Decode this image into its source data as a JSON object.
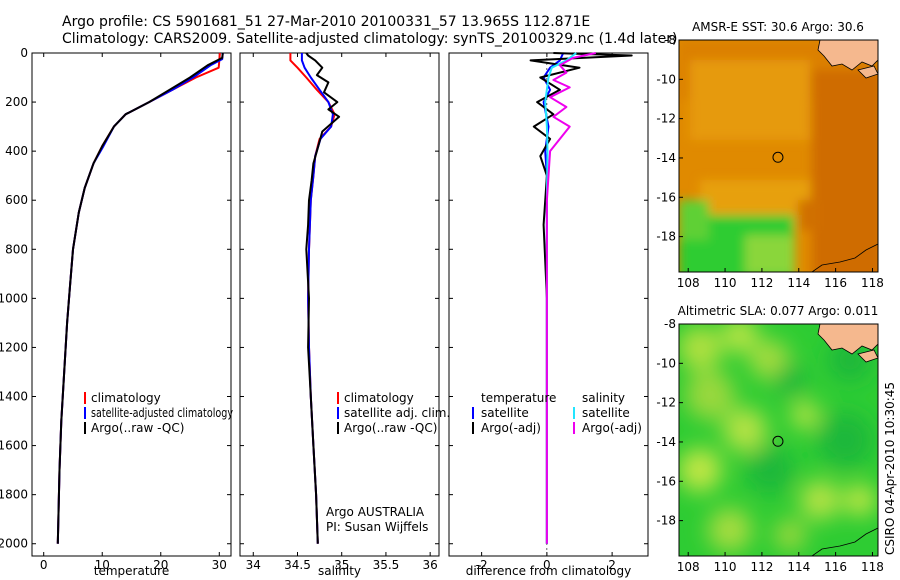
{
  "header": {
    "line1": "Argo profile: CS 5901681_51 27-Mar-2010 20100331_57 13.965S 112.871E",
    "line2": "Climatology: CARS2009. Satellite-adjusted climatology: synTS_20100329.nc (1.4d later)"
  },
  "side_label": "CSIRO 04-Apr-2010 10:30:45",
  "colors": {
    "climatology": "#ff0000",
    "satellite": "#0000ff",
    "argo": "#000000",
    "sal_satellite": "#22e5ff",
    "sal_argo": "#ee00ee",
    "land": "#f5b88e",
    "sst_warm": "#e08a00",
    "sst_hot": "#d06800",
    "sla_green": "#2ecc33"
  },
  "legends": {
    "temperature_panel": [
      "climatology",
      "satellite-adjusted climatology",
      "Argo(..raw -QC)"
    ],
    "salinity_panel": [
      "climatology",
      "satellite adj. clim.",
      "Argo(..raw -QC)"
    ],
    "salinity_note": [
      "Argo AUSTRALIA",
      "PI: Susan Wijffels"
    ],
    "difference_headers": [
      "temperature",
      "salinity"
    ],
    "difference_temperature": [
      "satellite",
      "Argo(-adj)"
    ],
    "difference_salinity": [
      "satellite",
      "Argo(-adj)"
    ]
  },
  "maps": {
    "sst_title": "AMSR-E SST: 30.6 Argo: 30.6",
    "sla_title": "Altimetric SLA: 0.077 Argo: 0.011",
    "xticks": [
      "108",
      "110",
      "112",
      "114",
      "116",
      "118"
    ],
    "yticks": [
      "-8",
      "-10",
      "-12",
      "-14",
      "-16",
      "-18"
    ],
    "argo_lon": 112.871,
    "argo_lat": -13.965,
    "lon_range": [
      107.5,
      118.3
    ],
    "lat_range": [
      -8,
      -19.8
    ]
  },
  "chart_data": [
    {
      "type": "line",
      "name": "temperature",
      "xlabel": "temperature",
      "ylabel": "",
      "xlim": [
        -2,
        32
      ],
      "ylim": [
        2050,
        0
      ],
      "xticks": [
        "0",
        "10",
        "20",
        "30"
      ],
      "xtick_values": [
        0,
        10,
        20,
        30
      ],
      "yticks": [
        "0",
        "200",
        "400",
        "600",
        "800",
        "1000",
        "1200",
        "1400",
        "1600",
        "1800",
        "2000"
      ],
      "ytick_values": [
        0,
        200,
        400,
        600,
        800,
        1000,
        1200,
        1400,
        1600,
        1800,
        2000
      ],
      "series": [
        {
          "name": "climatology",
          "color": "#ff0000",
          "x": [
            30.1,
            30.0,
            29.9,
            26.0,
            22.0,
            18.0,
            14.0,
            12.0,
            10.0,
            8.5,
            7.0,
            6.0,
            5.0,
            4.5,
            4.0,
            3.5,
            3.0,
            2.7,
            2.4
          ],
          "y": [
            0,
            30,
            60,
            100,
            150,
            200,
            250,
            300,
            380,
            450,
            550,
            650,
            800,
            950,
            1100,
            1300,
            1500,
            1700,
            2000
          ]
        },
        {
          "name": "satellite-adjusted climatology",
          "color": "#0000ff",
          "x": [
            30.6,
            30.5,
            28.5,
            25.5,
            22.0,
            18.0,
            14.0,
            12.0,
            10.2,
            8.5,
            7.0,
            6.0,
            5.0,
            4.5,
            4.0,
            3.5,
            3.0,
            2.7,
            2.4
          ],
          "y": [
            0,
            25,
            50,
            100,
            150,
            200,
            250,
            300,
            380,
            450,
            550,
            650,
            800,
            950,
            1100,
            1300,
            1500,
            1700,
            2000
          ]
        },
        {
          "name": "Argo(..raw -QC)",
          "color": "#000000",
          "x": [
            30.6,
            30.5,
            28.0,
            25.0,
            21.5,
            18.0,
            14.0,
            12.0,
            10.0,
            8.5,
            7.0,
            6.0,
            5.0,
            4.5,
            4.0,
            3.5,
            3.0,
            2.7,
            2.4
          ],
          "y": [
            0,
            20,
            50,
            100,
            150,
            200,
            250,
            300,
            380,
            450,
            550,
            650,
            800,
            950,
            1100,
            1300,
            1500,
            1700,
            2000
          ]
        }
      ]
    },
    {
      "type": "line",
      "name": "salinity",
      "xlabel": "salinity",
      "ylabel": "",
      "xlim": [
        33.85,
        36.1
      ],
      "ylim": [
        2050,
        0
      ],
      "xticks": [
        "34",
        "34.5",
        "35",
        "35.5",
        "36"
      ],
      "xtick_values": [
        34,
        34.5,
        35,
        35.5,
        36
      ],
      "series": [
        {
          "name": "climatology",
          "color": "#ff0000",
          "x": [
            34.42,
            34.42,
            34.5,
            34.6,
            34.72,
            34.85,
            34.92,
            34.88,
            34.75,
            34.7,
            34.68,
            34.65,
            34.63,
            34.62,
            34.63,
            34.65,
            34.68,
            34.71,
            34.73
          ],
          "y": [
            0,
            30,
            60,
            100,
            150,
            200,
            250,
            300,
            350,
            420,
            500,
            600,
            800,
            1000,
            1200,
            1400,
            1600,
            1800,
            2000
          ]
        },
        {
          "name": "satellite adj. clim.",
          "color": "#0000ff",
          "x": [
            34.55,
            34.55,
            34.58,
            34.65,
            34.75,
            34.85,
            34.9,
            34.88,
            34.76,
            34.7,
            34.68,
            34.65,
            34.63,
            34.62,
            34.63,
            34.65,
            34.68,
            34.71,
            34.73
          ],
          "y": [
            0,
            30,
            60,
            100,
            150,
            200,
            250,
            300,
            350,
            420,
            500,
            600,
            800,
            1000,
            1200,
            1400,
            1600,
            1800,
            2000
          ]
        },
        {
          "name": "Argo(..raw -QC)",
          "color": "#000000",
          "x": [
            34.6,
            34.62,
            34.7,
            34.78,
            34.72,
            34.85,
            34.8,
            34.95,
            34.85,
            34.97,
            34.78,
            34.72,
            34.68,
            34.66,
            34.63,
            34.62,
            34.6,
            34.63,
            34.62,
            34.65,
            34.68,
            34.71,
            34.73
          ],
          "y": [
            0,
            10,
            30,
            60,
            90,
            120,
            160,
            200,
            230,
            260,
            320,
            400,
            450,
            520,
            600,
            700,
            800,
            1000,
            1200,
            1400,
            1600,
            1800,
            2000
          ]
        }
      ]
    },
    {
      "type": "line",
      "name": "difference from climatology",
      "xlabel": "difference from climatology",
      "ylabel": "",
      "xlim": [
        -3,
        3.1
      ],
      "ylim": [
        2050,
        0
      ],
      "xticks": [
        "-2",
        "0",
        "2"
      ],
      "xtick_values": [
        -2,
        0,
        2
      ],
      "series": [
        {
          "name": "temperature satellite",
          "color": "#0000ff",
          "x": [
            0.5,
            0.4,
            0.1,
            -0.1,
            0.1,
            -0.1,
            0.05,
            -0.05,
            0.0,
            0.0,
            0.0,
            0.0,
            0.0
          ],
          "y": [
            0,
            30,
            60,
            100,
            150,
            200,
            300,
            400,
            500,
            700,
            1000,
            1500,
            2000
          ]
        },
        {
          "name": "temperature Argo(-adj)",
          "color": "#000000",
          "x": [
            0.2,
            2.6,
            -0.5,
            1.0,
            -0.2,
            0.4,
            -0.3,
            0.2,
            -0.4,
            0.1,
            -0.2,
            0.0,
            -0.1,
            0.0,
            0.0,
            0.0
          ],
          "y": [
            0,
            10,
            30,
            60,
            100,
            150,
            200,
            250,
            300,
            350,
            420,
            500,
            700,
            1000,
            1500,
            2000
          ]
        },
        {
          "name": "salinity satellite",
          "color": "#22e5ff",
          "x": [
            0.9,
            0.6,
            0.15,
            0.05,
            -0.05,
            0.0,
            0.02,
            0.0,
            0.0,
            0.0,
            0.0
          ],
          "y": [
            0,
            30,
            60,
            100,
            200,
            300,
            400,
            600,
            1000,
            1500,
            2000
          ]
        },
        {
          "name": "salinity Argo(-adj)",
          "color": "#ee00ee",
          "x": [
            1.5,
            0.8,
            0.4,
            0.6,
            0.2,
            0.7,
            0.1,
            0.6,
            0.2,
            0.7,
            0.1,
            0.0,
            0.0,
            0.0,
            0.0
          ],
          "y": [
            0,
            20,
            50,
            80,
            110,
            140,
            180,
            220,
            260,
            300,
            400,
            600,
            1000,
            1500,
            2000
          ]
        }
      ]
    }
  ]
}
